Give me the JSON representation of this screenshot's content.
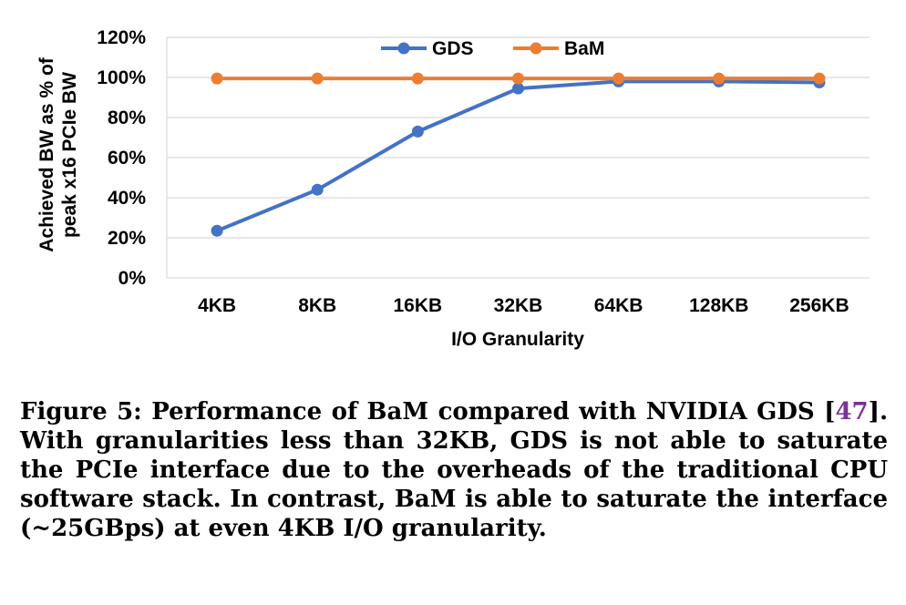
{
  "chart_data": {
    "type": "line",
    "categories": [
      "4KB",
      "8KB",
      "16KB",
      "32KB",
      "64KB",
      "128KB",
      "256KB"
    ],
    "series": [
      {
        "name": "GDS",
        "color": "#4472C4",
        "values": [
          23.5,
          44,
          73,
          94.5,
          98,
          98,
          97.5
        ]
      },
      {
        "name": "BaM",
        "color": "#ED7D31",
        "values": [
          99.5,
          99.5,
          99.5,
          99.5,
          99.5,
          99.5,
          99.5
        ]
      }
    ],
    "yticks": [
      "0%",
      "20%",
      "40%",
      "60%",
      "80%",
      "100%",
      "120%"
    ],
    "ylim": [
      0,
      120
    ],
    "xlabel": "I/O Granularity",
    "ylabel_line1": "Achieved BW as % of",
    "ylabel_line2": "peak x16 PCIe BW",
    "grid": true,
    "legend_position": "top-center"
  },
  "caption": {
    "prefix": "Figure 5: Performance of BaM compared with NVIDIA GDS [",
    "ref": "47",
    "suffix": "]. With granularities less than 32KB, GDS is not able to saturate the PCIe interface due to the overheads of the traditional CPU software stack. In contrast, BaM is able to saturate the interface (~25GBps) at even 4KB I/O granularity."
  }
}
